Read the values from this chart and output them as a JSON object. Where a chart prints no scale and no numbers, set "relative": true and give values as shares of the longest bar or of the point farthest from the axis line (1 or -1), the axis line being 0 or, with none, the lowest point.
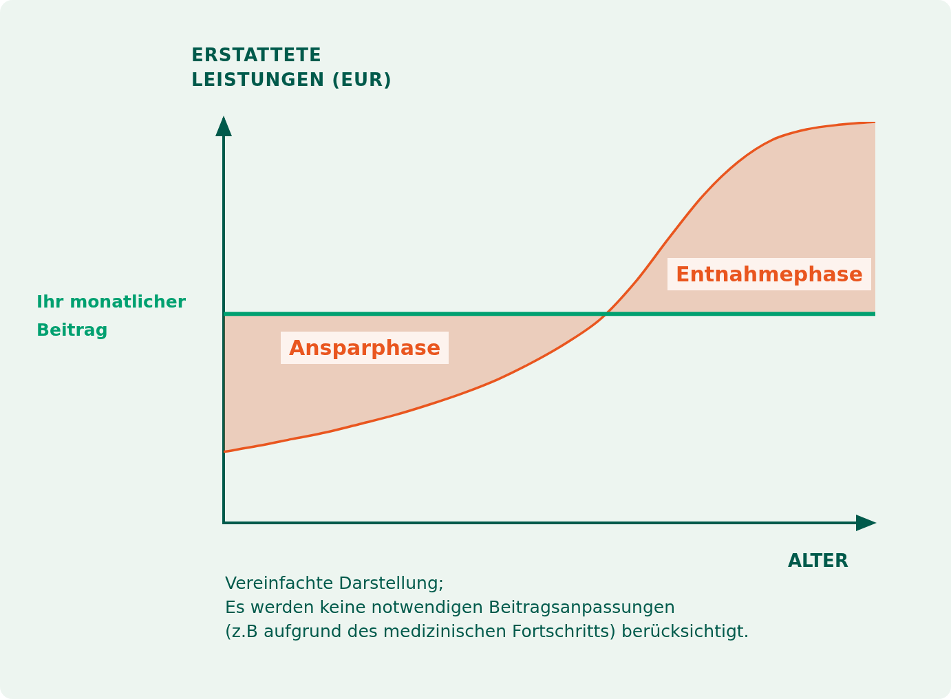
{
  "chart_data": {
    "type": "line",
    "relative": true,
    "legend": false,
    "xlabel": "ALTER",
    "ylabel": "ERSTATTETE\nLEISTUNGEN (EUR)",
    "categories": [
      null,
      null,
      null,
      null,
      null,
      null,
      null,
      null,
      null,
      null,
      null,
      null,
      null,
      null,
      null,
      null,
      null,
      null,
      null,
      null
    ],
    "series": [
      {
        "color": "#e9561f",
        "values": [
          0.177,
          0.192,
          0.209,
          0.226,
          0.247,
          0.269,
          0.295,
          0.324,
          0.358,
          0.4,
          0.449,
          0.509,
          0.6,
          0.712,
          0.818,
          0.9,
          0.955,
          0.981,
          0.993,
          1.0
        ]
      },
      {
        "name": "Ihr monatlicher Beitrag",
        "color": "#00a070",
        "values": [
          0.521,
          0.521,
          0.521,
          0.521,
          0.521,
          0.521,
          0.521,
          0.521,
          0.521,
          0.521,
          0.521,
          0.521,
          0.521,
          0.521,
          0.521,
          0.521,
          0.521,
          0.521,
          0.521,
          0.521
        ]
      }
    ],
    "annotations": [
      "Ansparphase",
      "Entnahmephase",
      "Vereinfachte Darstellung;\nEs werden keine notwendigen Beitragsanpassungen\n(z.B aufgrund des medizinischen Fortschritts) berücksichtigt."
    ]
  }
}
